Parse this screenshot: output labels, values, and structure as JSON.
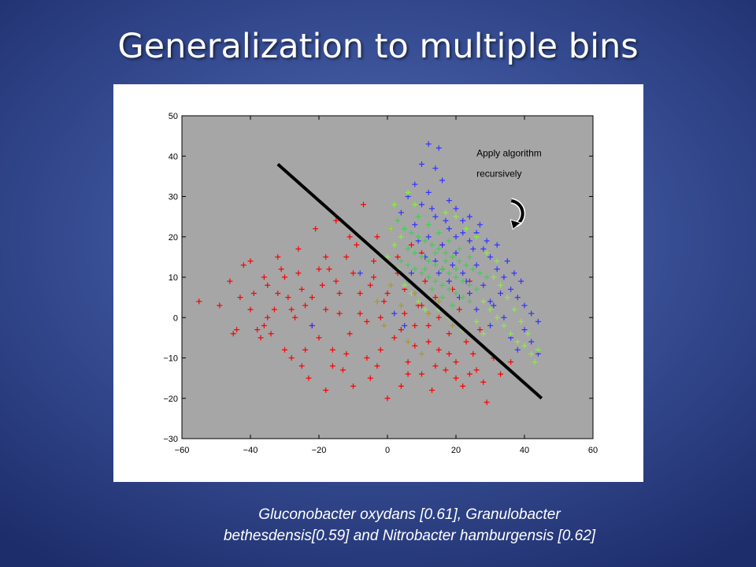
{
  "slide": {
    "title": "Generalization to multiple bins",
    "caption_lines": [
      "Gluconobacter oxydans [0.61], Granulobacter",
      "bethesdensis[0.59] and  Nitrobacter hamburgensis [0.62]"
    ]
  },
  "chart_data": {
    "type": "scatter",
    "marker": "+",
    "xlim": [
      -60,
      60
    ],
    "ylim": [
      -30,
      50
    ],
    "xticks": [
      -60,
      -40,
      -20,
      0,
      20,
      40,
      60
    ],
    "yticks": [
      -30,
      -20,
      -10,
      0,
      10,
      20,
      30,
      40,
      50
    ],
    "plot_background": "#a6a6a6",
    "grid": false,
    "series": [
      {
        "color": "#ff0000",
        "points": [
          [
            -55,
            4
          ],
          [
            -49,
            3
          ],
          [
            -46,
            9
          ],
          [
            -44,
            -3
          ],
          [
            -45,
            -4
          ],
          [
            -43,
            5
          ],
          [
            -42,
            13
          ],
          [
            -40,
            14
          ],
          [
            -39,
            6
          ],
          [
            -38,
            -3
          ],
          [
            -37,
            -5
          ],
          [
            -36,
            10
          ],
          [
            -35,
            8
          ],
          [
            -34,
            -4
          ],
          [
            -33,
            2
          ],
          [
            -32,
            15
          ],
          [
            -31,
            12
          ],
          [
            -30,
            -8
          ],
          [
            -29,
            5
          ],
          [
            -28,
            -10
          ],
          [
            -27,
            0
          ],
          [
            -26,
            17
          ],
          [
            -25,
            -12
          ],
          [
            -24,
            3
          ],
          [
            -23,
            -15
          ],
          [
            -22,
            -2
          ],
          [
            -21,
            22
          ],
          [
            -20,
            -5
          ],
          [
            -19,
            8
          ],
          [
            -18,
            -18
          ],
          [
            -17,
            12
          ],
          [
            -16,
            -8
          ],
          [
            -15,
            24
          ],
          [
            -14,
            1
          ],
          [
            -13,
            -13
          ],
          [
            -12,
            15
          ],
          [
            -11,
            -4
          ],
          [
            -10,
            -17
          ],
          [
            -9,
            18
          ],
          [
            -8,
            6
          ],
          [
            -7,
            28
          ],
          [
            -6,
            -1
          ],
          [
            -5,
            -15
          ],
          [
            -4,
            14
          ],
          [
            -3,
            20
          ],
          [
            -2,
            -8
          ],
          [
            -1,
            4
          ],
          [
            0,
            -20
          ],
          [
            1,
            22
          ],
          [
            2,
            -5
          ],
          [
            3,
            11
          ],
          [
            4,
            -17
          ],
          [
            5,
            1
          ],
          [
            6,
            -11
          ],
          [
            7,
            18
          ],
          [
            8,
            -7
          ],
          [
            9,
            3
          ],
          [
            10,
            -14
          ],
          [
            11,
            9
          ],
          [
            12,
            -2
          ],
          [
            13,
            -18
          ],
          [
            14,
            5
          ],
          [
            15,
            -8
          ],
          [
            16,
            12
          ],
          [
            17,
            -13
          ],
          [
            18,
            -4
          ],
          [
            19,
            7
          ],
          [
            20,
            -11
          ],
          [
            21,
            2
          ],
          [
            22,
            -17
          ],
          [
            23,
            -6
          ],
          [
            24,
            9
          ],
          [
            25,
            -9
          ],
          [
            26,
            -13
          ],
          [
            27,
            -3
          ],
          [
            28,
            -16
          ],
          [
            29,
            -21
          ],
          [
            31,
            -10
          ],
          [
            33,
            -14
          ],
          [
            36,
            -11
          ],
          [
            -30,
            10
          ],
          [
            -25,
            7
          ],
          [
            -20,
            12
          ],
          [
            -15,
            9
          ],
          [
            -10,
            11
          ],
          [
            -5,
            8
          ],
          [
            0,
            6
          ],
          [
            5,
            7
          ],
          [
            10,
            3
          ],
          [
            15,
            0
          ],
          [
            -28,
            2
          ],
          [
            -22,
            5
          ],
          [
            -18,
            2
          ],
          [
            -14,
            6
          ],
          [
            -8,
            1
          ],
          [
            -2,
            0
          ],
          [
            4,
            -3
          ],
          [
            8,
            -2
          ],
          [
            12,
            -6
          ],
          [
            18,
            -9
          ],
          [
            -35,
            0
          ],
          [
            -24,
            -8
          ],
          [
            -16,
            -12
          ],
          [
            -6,
            -10
          ],
          [
            -3,
            -12
          ],
          [
            6,
            -14
          ],
          [
            14,
            -12
          ],
          [
            20,
            -15
          ],
          [
            24,
            -14
          ],
          [
            -12,
            -9
          ],
          [
            -40,
            2
          ],
          [
            -36,
            -2
          ],
          [
            -32,
            6
          ],
          [
            -26,
            11
          ],
          [
            -18,
            15
          ],
          [
            -11,
            20
          ],
          [
            -4,
            10
          ],
          [
            3,
            15
          ],
          [
            10,
            16
          ],
          [
            16,
            18
          ]
        ]
      },
      {
        "color": "#3333ff",
        "points": [
          [
            12,
            43
          ],
          [
            15,
            42
          ],
          [
            10,
            38
          ],
          [
            14,
            37
          ],
          [
            16,
            34
          ],
          [
            8,
            33
          ],
          [
            12,
            31
          ],
          [
            6,
            30
          ],
          [
            18,
            29
          ],
          [
            10,
            28
          ],
          [
            20,
            27
          ],
          [
            4,
            26
          ],
          [
            14,
            25
          ],
          [
            22,
            24
          ],
          [
            8,
            23
          ],
          [
            18,
            22
          ],
          [
            26,
            21
          ],
          [
            12,
            20
          ],
          [
            24,
            19
          ],
          [
            16,
            18
          ],
          [
            28,
            17
          ],
          [
            20,
            16
          ],
          [
            30,
            15
          ],
          [
            14,
            14
          ],
          [
            26,
            13
          ],
          [
            32,
            12
          ],
          [
            22,
            11
          ],
          [
            34,
            10
          ],
          [
            18,
            9
          ],
          [
            28,
            8
          ],
          [
            36,
            7
          ],
          [
            24,
            6
          ],
          [
            38,
            5
          ],
          [
            30,
            4
          ],
          [
            40,
            3
          ],
          [
            26,
            2
          ],
          [
            42,
            1
          ],
          [
            34,
            0
          ],
          [
            44,
            -1
          ],
          [
            30,
            -2
          ],
          [
            40,
            -3
          ],
          [
            36,
            -5
          ],
          [
            42,
            -6
          ],
          [
            38,
            -8
          ],
          [
            44,
            -9
          ],
          [
            24,
            25
          ],
          [
            27,
            23
          ],
          [
            22,
            21
          ],
          [
            25,
            17
          ],
          [
            20,
            20
          ],
          [
            17,
            24
          ],
          [
            13,
            27
          ],
          [
            9,
            19
          ],
          [
            11,
            15
          ],
          [
            15,
            11
          ],
          [
            19,
            13
          ],
          [
            23,
            9
          ],
          [
            21,
            5
          ],
          [
            7,
            11
          ],
          [
            -22,
            -2
          ],
          [
            -8,
            11
          ],
          [
            2,
            1
          ],
          [
            5,
            -2
          ],
          [
            29,
            19
          ],
          [
            32,
            18
          ],
          [
            35,
            14
          ],
          [
            37,
            11
          ],
          [
            39,
            9
          ],
          [
            33,
            6
          ],
          [
            31,
            3
          ]
        ]
      },
      {
        "color": "#44cc55",
        "points": [
          [
            3,
            24
          ],
          [
            5,
            22
          ],
          [
            7,
            21
          ],
          [
            9,
            20
          ],
          [
            11,
            19
          ],
          [
            13,
            18
          ],
          [
            15,
            17
          ],
          [
            17,
            16
          ],
          [
            19,
            15
          ],
          [
            21,
            14
          ],
          [
            23,
            13
          ],
          [
            25,
            12
          ],
          [
            27,
            11
          ],
          [
            29,
            10
          ],
          [
            6,
            17
          ],
          [
            8,
            16
          ],
          [
            10,
            15
          ],
          [
            12,
            14
          ],
          [
            14,
            13
          ],
          [
            16,
            12
          ],
          [
            18,
            11
          ],
          [
            20,
            10
          ],
          [
            22,
            9
          ],
          [
            24,
            8
          ],
          [
            26,
            7
          ],
          [
            4,
            14
          ],
          [
            6,
            13
          ],
          [
            8,
            12
          ],
          [
            10,
            11
          ],
          [
            12,
            10
          ],
          [
            14,
            9
          ],
          [
            16,
            8
          ],
          [
            18,
            7
          ],
          [
            20,
            6
          ],
          [
            22,
            5
          ],
          [
            24,
            4
          ],
          [
            9,
            25
          ],
          [
            12,
            23
          ],
          [
            15,
            21
          ],
          [
            18,
            19
          ],
          [
            21,
            17
          ],
          [
            24,
            15
          ],
          [
            14,
            16
          ],
          [
            17,
            14
          ],
          [
            20,
            12
          ],
          [
            11,
            12
          ],
          [
            13,
            7
          ],
          [
            16,
            5
          ],
          [
            19,
            3
          ],
          [
            6,
            9
          ]
        ]
      },
      {
        "color": "#88ee44",
        "points": [
          [
            2,
            28
          ],
          [
            6,
            31
          ],
          [
            8,
            28
          ],
          [
            4,
            20
          ],
          [
            2,
            18
          ],
          [
            0,
            15
          ],
          [
            1,
            22
          ],
          [
            3,
            12
          ],
          [
            5,
            8
          ],
          [
            7,
            6
          ],
          [
            9,
            4
          ],
          [
            11,
            2
          ],
          [
            28,
            4
          ],
          [
            30,
            2
          ],
          [
            32,
            0
          ],
          [
            34,
            -2
          ],
          [
            36,
            -4
          ],
          [
            38,
            -6
          ],
          [
            40,
            -7
          ],
          [
            42,
            -9
          ],
          [
            44,
            -8
          ],
          [
            43,
            -11
          ],
          [
            35,
            5
          ],
          [
            33,
            8
          ],
          [
            31,
            10
          ],
          [
            37,
            2
          ],
          [
            39,
            -1
          ],
          [
            41,
            -4
          ],
          [
            26,
            -1
          ],
          [
            28,
            -4
          ],
          [
            17,
            26
          ],
          [
            20,
            25
          ],
          [
            23,
            22
          ],
          [
            26,
            20
          ],
          [
            29,
            16
          ],
          [
            32,
            14
          ],
          [
            12,
            5
          ],
          [
            15,
            2
          ],
          [
            18,
            0
          ],
          [
            22,
            -3
          ]
        ]
      },
      {
        "color": "#aa9922",
        "points": [
          [
            -3,
            4
          ],
          [
            1,
            8
          ],
          [
            4,
            3
          ],
          [
            8,
            6
          ],
          [
            12,
            1
          ],
          [
            15,
            4
          ],
          [
            -1,
            -2
          ],
          [
            6,
            -6
          ],
          [
            19,
            -2
          ],
          [
            10,
            -9
          ]
        ]
      }
    ],
    "annotations": [
      {
        "lines": [
          "Apply algorithm",
          "recursively"
        ],
        "at": [
          26,
          40
        ],
        "color": "#000000"
      }
    ],
    "separator_line": {
      "from": [
        -32,
        38
      ],
      "to": [
        45,
        -20
      ],
      "color": "#000000"
    },
    "recursion_arrow": {
      "center": [
        38,
        26
      ],
      "color": "#000000"
    }
  }
}
